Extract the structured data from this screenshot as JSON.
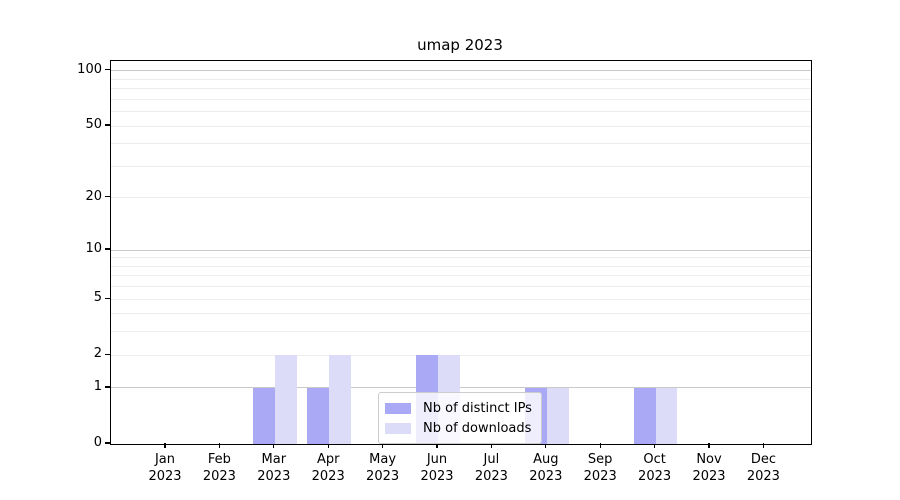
{
  "chart_data": {
    "type": "bar",
    "title": "umap 2023",
    "categories": [
      "Jan",
      "Feb",
      "Mar",
      "Apr",
      "May",
      "Jun",
      "Jul",
      "Aug",
      "Sep",
      "Oct",
      "Nov",
      "Dec"
    ],
    "year": "2023",
    "series": [
      {
        "name": "Nb of distinct IPs",
        "color": "#a9a9f5",
        "values": [
          0,
          0,
          1,
          1,
          0,
          2,
          0,
          1,
          0,
          1,
          0,
          0
        ]
      },
      {
        "name": "Nb of downloads",
        "color": "#dcdcf9",
        "values": [
          0,
          0,
          2,
          2,
          0,
          2,
          0,
          1,
          0,
          1,
          0,
          0
        ]
      }
    ],
    "yscale": "log1p",
    "ylim": [
      0,
      113
    ],
    "y_axis": {
      "tick_labels": [
        0,
        1,
        2,
        5,
        10,
        20,
        50,
        100
      ],
      "major_gridlines": [
        1,
        10,
        100
      ],
      "minor_gridlines": [
        2,
        3,
        4,
        5,
        6,
        7,
        8,
        9,
        20,
        30,
        40,
        50,
        60,
        70,
        80,
        90
      ]
    },
    "legend_position": "lower center",
    "grid": true
  }
}
